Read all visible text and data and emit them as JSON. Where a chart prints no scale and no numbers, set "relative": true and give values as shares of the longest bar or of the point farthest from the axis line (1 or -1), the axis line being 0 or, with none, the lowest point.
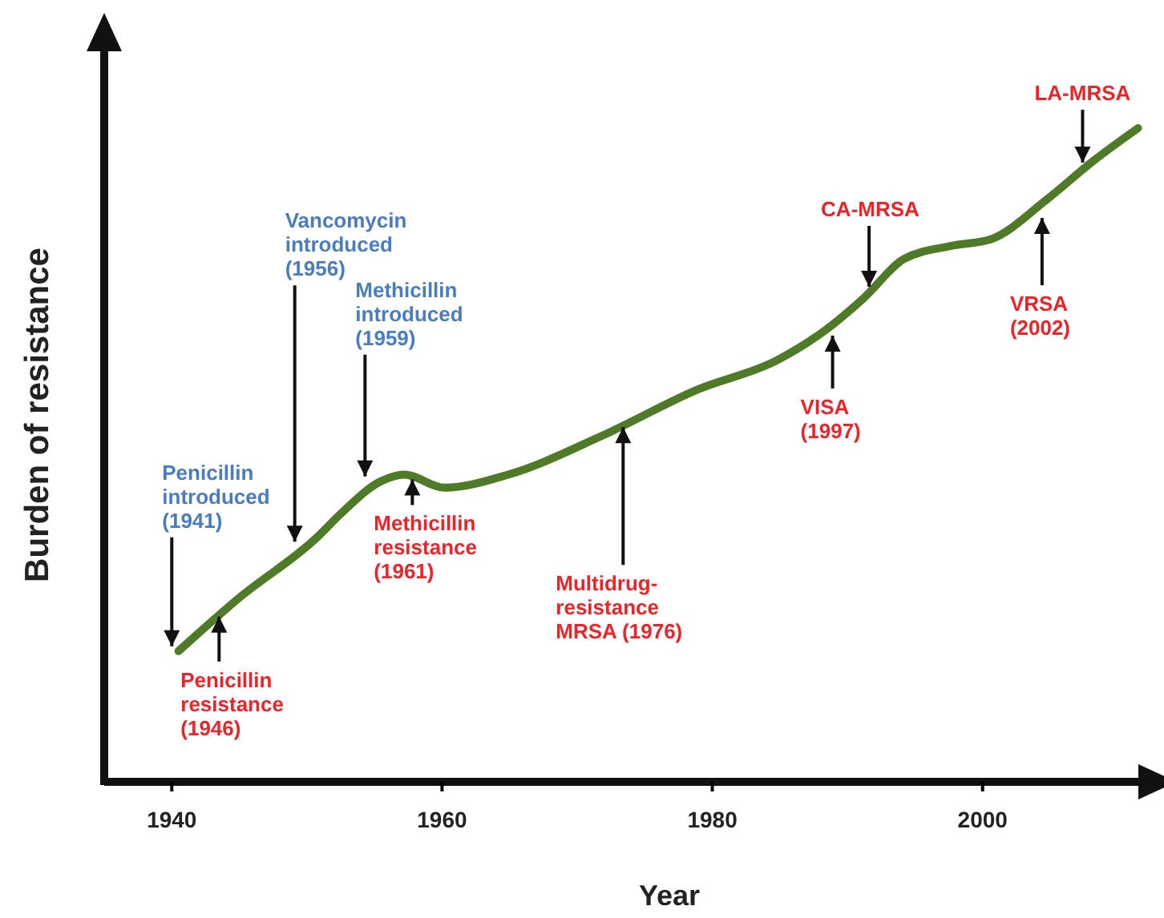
{
  "chart_data": {
    "type": "line",
    "relative": true,
    "xlabel": "Year",
    "ylabel": "Burden of resistance",
    "xlim": [
      1935,
      2012
    ],
    "xticks": [
      1940,
      1960,
      1980,
      2000
    ],
    "grid": false,
    "marker": "none",
    "line_style": "solid",
    "series": [
      {
        "color": "#4f7a28",
        "x": [
          1940.5,
          1944.9,
          1950.8,
          1952.5,
          1955.5,
          1957.2,
          1960.2,
          1964.9,
          1971.9,
          1978.9,
          1984.8,
          1988.3,
          1991.2,
          1994.2,
          1997.7,
          2000.6,
          2004.7,
          2008.2,
          2011.5
        ],
        "values": [
          0.2,
          0.28,
          0.375,
          0.41,
          0.46,
          0.47,
          0.45,
          0.47,
          0.53,
          0.6,
          0.645,
          0.69,
          0.74,
          0.8,
          0.82,
          0.83,
          0.89,
          0.95,
          1.0
        ]
      }
    ],
    "annotations": [
      {
        "text": "Penicillin\nintroduced\n(1941)",
        "x": 1940,
        "y": 0.2
      },
      {
        "text": "Penicillin\nresistance\n(1946)",
        "x": 1943.5,
        "y": 0.26
      },
      {
        "text": "Vancomycin\nintroduced\n(1956)",
        "x": 1949.1,
        "y": 0.36
      },
      {
        "text": "Methicillin\nintroduced\n(1959)",
        "x": 1954.3,
        "y": 0.46
      },
      {
        "text": "Methicillin\nresistance\n(1961)",
        "x": 1957.8,
        "y": 0.47
      },
      {
        "text": "Multidrug-\nresistance\nMRSA (1976)",
        "x": 1973.4,
        "y": 0.55
      },
      {
        "text": "VISA\n(1997)",
        "x": 1988.9,
        "y": 0.69
      },
      {
        "text": "CA-MRSA",
        "x": 1991.6,
        "y": 0.75
      },
      {
        "text": "VRSA\n(2002)",
        "x": 2004.4,
        "y": 0.87
      },
      {
        "text": "LA-MRSA",
        "x": 2007.4,
        "y": 0.94
      }
    ]
  }
}
